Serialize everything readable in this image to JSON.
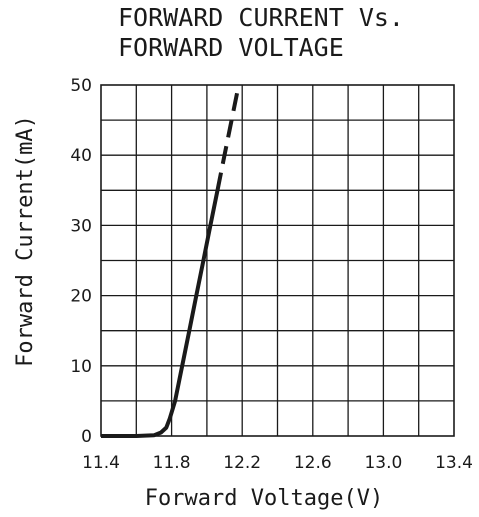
{
  "chart_data": {
    "type": "line",
    "title_lines": [
      "FORWARD CURRENT Vs.",
      "FORWARD VOLTAGE"
    ],
    "xlabel": "Forward Voltage(V)",
    "ylabel": "Forward Current(mA)",
    "xlim": [
      11.4,
      13.4
    ],
    "ylim": [
      0,
      50
    ],
    "x_ticks": [
      "11.4",
      "11.8",
      "12.2",
      "12.6",
      "13.0",
      "13.4"
    ],
    "x_tick_values": [
      11.4,
      11.8,
      12.2,
      12.6,
      13.0,
      13.4
    ],
    "y_ticks": [
      "0",
      "10",
      "20",
      "30",
      "40",
      "50"
    ],
    "y_tick_values": [
      0,
      10,
      20,
      30,
      40,
      50
    ],
    "x_grid_step": 0.2,
    "y_grid_step": 5,
    "grid": true,
    "series": [
      {
        "segments": [
          {
            "style": "solid",
            "points": [
              [
                11.4,
                0
              ],
              [
                11.5,
                0
              ],
              [
                11.6,
                0
              ],
              [
                11.7,
                0.1
              ],
              [
                11.74,
                0.5
              ],
              [
                11.77,
                1.2
              ],
              [
                11.79,
                2.5
              ],
              [
                11.82,
                5
              ],
              [
                11.86,
                10
              ],
              [
                11.9,
                15
              ],
              [
                11.94,
                20
              ],
              [
                11.98,
                25
              ],
              [
                12.02,
                30
              ],
              [
                12.06,
                35
              ]
            ]
          },
          {
            "style": "dashed",
            "points": [
              [
                12.06,
                35
              ],
              [
                12.1,
                40
              ],
              [
                12.14,
                45
              ],
              [
                12.18,
                50
              ]
            ]
          }
        ]
      }
    ]
  }
}
